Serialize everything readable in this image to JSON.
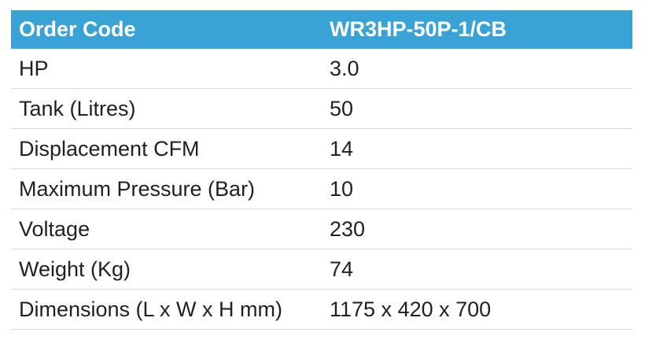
{
  "header": {
    "label": "Order Code",
    "value": "WR3HP-50P-1/CB"
  },
  "rows": [
    {
      "label": "HP",
      "value": "3.0"
    },
    {
      "label": "Tank (Litres)",
      "value": "50"
    },
    {
      "label": "Displacement CFM",
      "value": "14"
    },
    {
      "label": "Maximum Pressure (Bar)",
      "value": "10"
    },
    {
      "label": "Voltage",
      "value": "230"
    },
    {
      "label": "Weight (Kg)",
      "value": "74"
    },
    {
      "label": "Dimensions (L x W x H mm)",
      "value": "1175 x 420 x 700"
    }
  ],
  "colors": {
    "header_background": "#3aa3d6",
    "header_text": "#ffffff",
    "body_text": "#231f20",
    "row_divider": "#d9d9d9"
  }
}
